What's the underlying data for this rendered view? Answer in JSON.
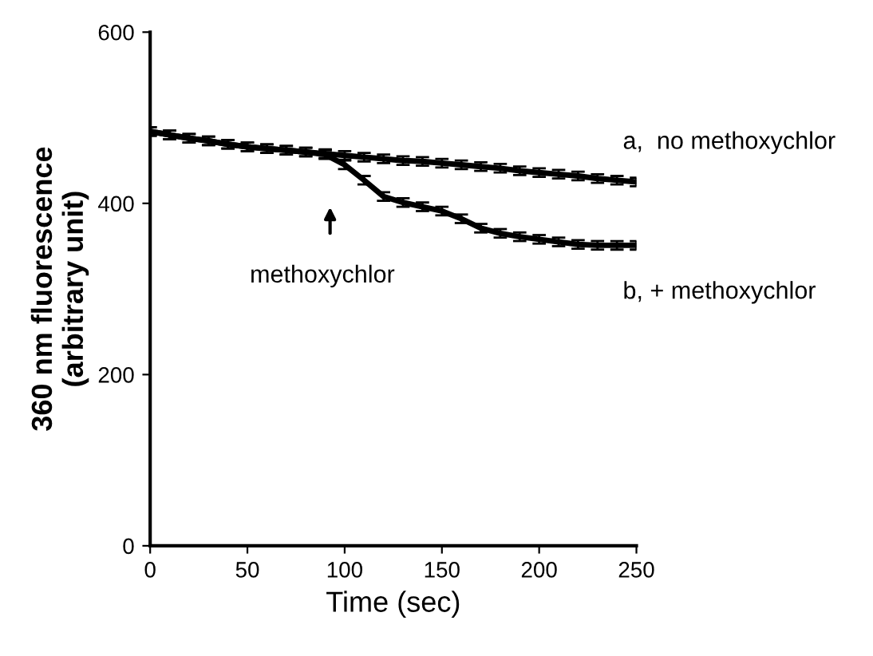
{
  "chart_data": {
    "type": "line",
    "xlabel": "Time (sec)",
    "ylabel": "360 nm fluorescence\n(arbitrary unit)",
    "x": [
      0,
      10,
      20,
      30,
      40,
      50,
      60,
      70,
      80,
      90,
      100,
      110,
      120,
      130,
      140,
      150,
      160,
      170,
      180,
      190,
      200,
      210,
      220,
      230,
      240,
      250
    ],
    "series": [
      {
        "name": "a,  no methoxychlor",
        "color": "#000000",
        "values": [
          484,
          480,
          476,
          473,
          469,
          466,
          464,
          462,
          460,
          458,
          456,
          454,
          452,
          450,
          449,
          447,
          445,
          443,
          441,
          438,
          436,
          434,
          432,
          429,
          427,
          425
        ],
        "errors": [
          5,
          5,
          5,
          5,
          5,
          5,
          5,
          5,
          5,
          5,
          5,
          5,
          5,
          5,
          5,
          5,
          5,
          5,
          5,
          5,
          5,
          5,
          5,
          5,
          5,
          5
        ]
      },
      {
        "name": "b, + methoxychlor",
        "color": "#000000",
        "values": [
          484,
          480,
          476,
          473,
          469,
          466,
          464,
          462,
          460,
          457,
          445,
          427,
          408,
          401,
          396,
          391,
          382,
          371,
          365,
          361,
          358,
          355,
          352,
          351,
          351,
          351
        ],
        "errors": [
          5,
          5,
          5,
          5,
          5,
          5,
          5,
          5,
          5,
          5,
          5,
          5,
          5,
          5,
          5,
          5,
          5,
          5,
          5,
          5,
          5,
          5,
          5,
          5,
          5,
          5
        ]
      }
    ],
    "xlim": [
      0,
      250
    ],
    "xticks": [
      0,
      50,
      100,
      150,
      200,
      250
    ],
    "ylim": [
      0,
      600
    ],
    "yticks": [
      0,
      200,
      400,
      600
    ],
    "annotations": [
      "methoxychlor"
    ],
    "grid": false,
    "legend": false,
    "marker": "none",
    "line_style": "solid"
  }
}
